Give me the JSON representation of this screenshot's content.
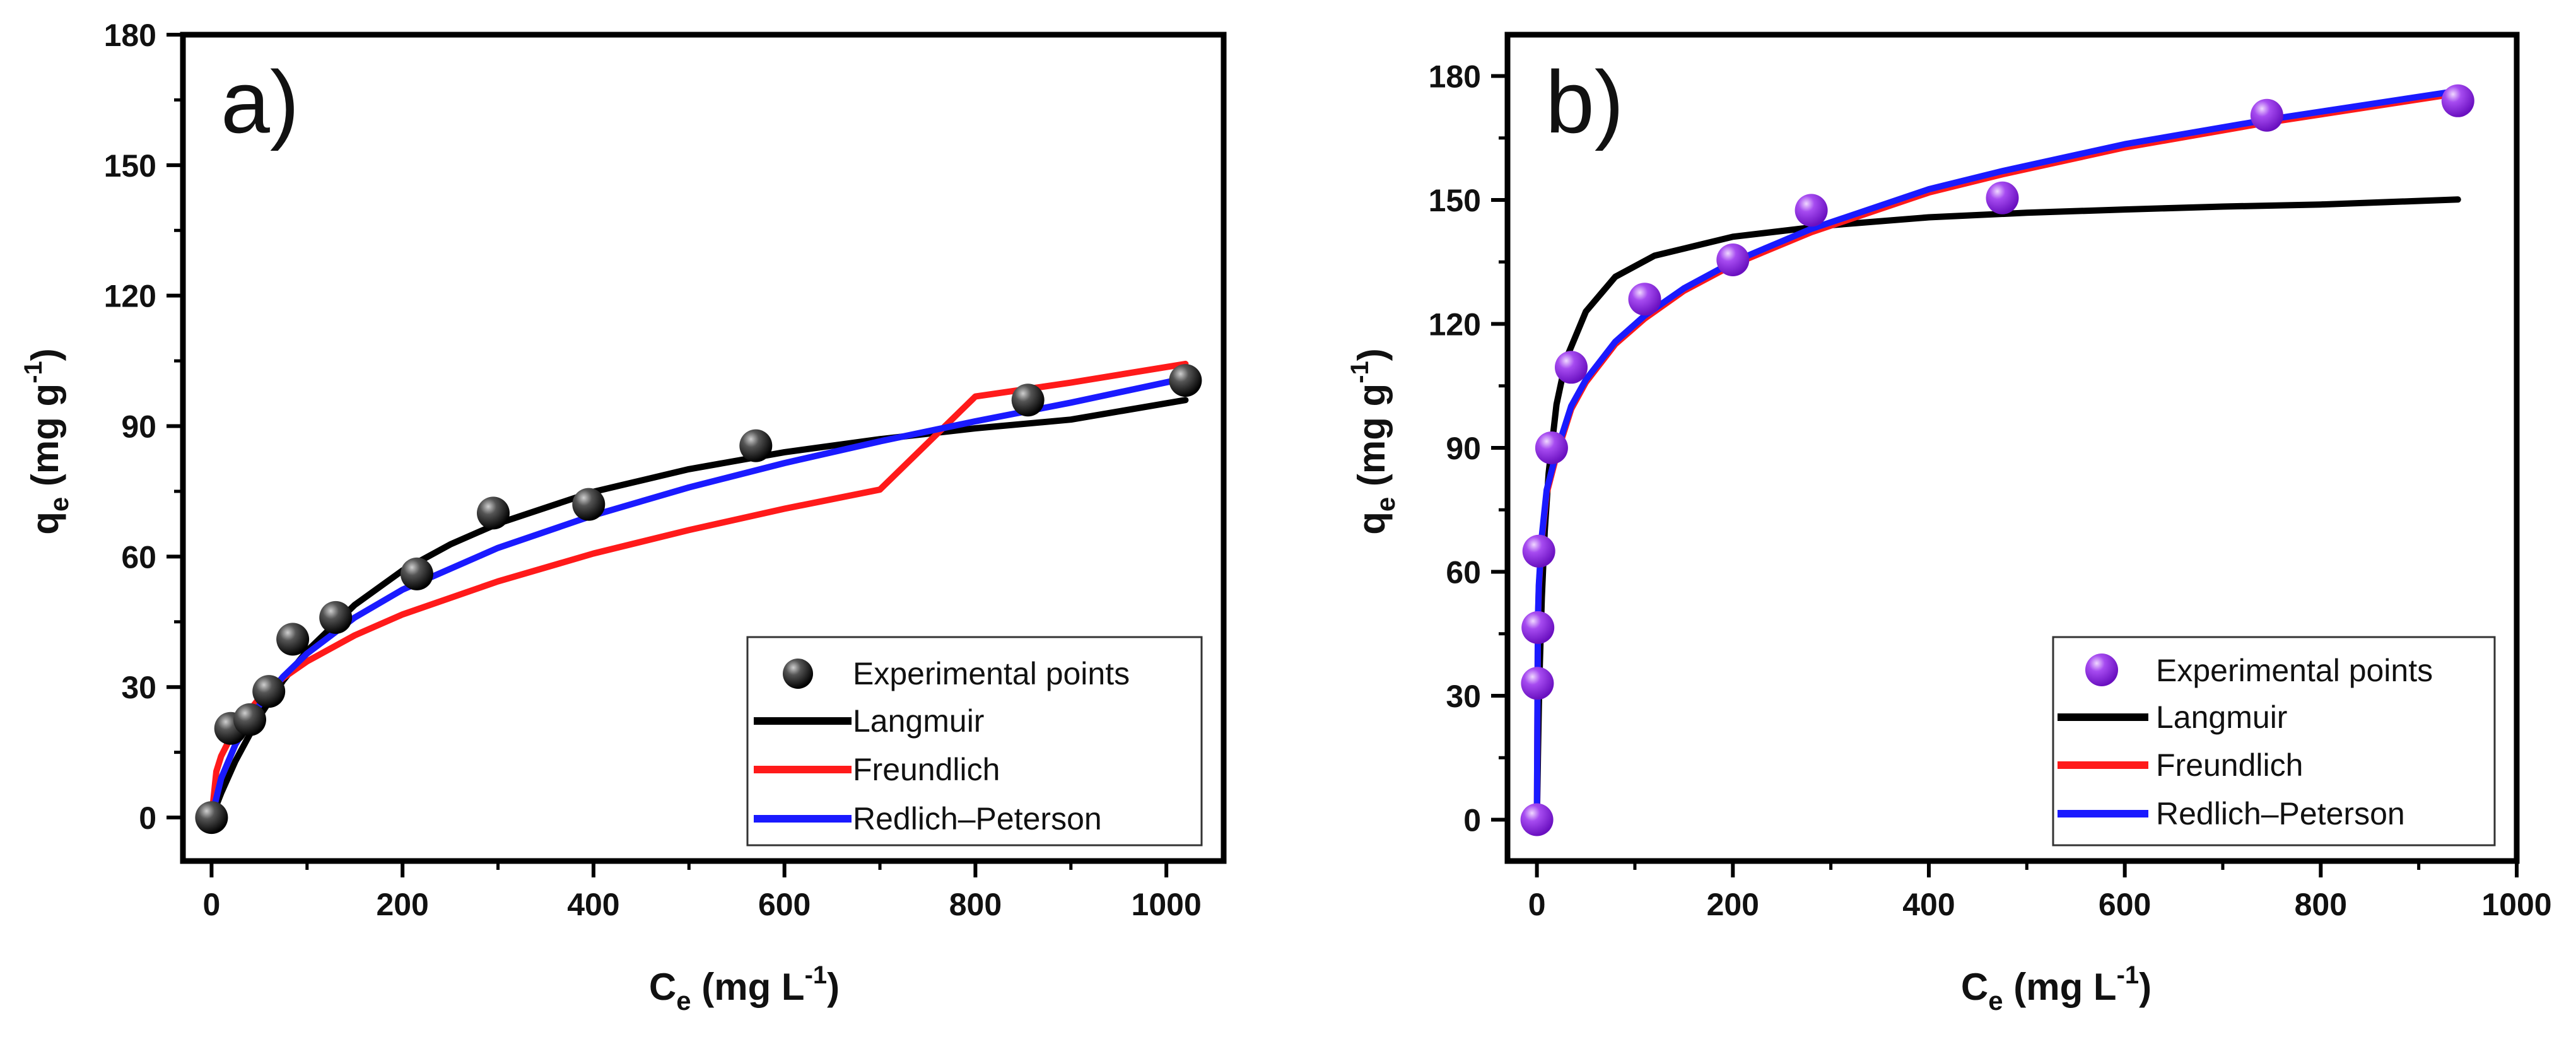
{
  "colors": {
    "langmuir": "#000000",
    "freundlich": "#ff1a1a",
    "redlich_peterson": "#1a1aff",
    "points_a": "#1a1a1a",
    "points_a_highlight": "#bdbdbd",
    "points_b": "#8a2be2",
    "points_b_highlight": "#e8c8ff",
    "axis": "#000000"
  },
  "chart_data": [
    {
      "panel": "a)",
      "type": "scatter+line",
      "xlabel_main": "C",
      "xlabel_sub": "e",
      "xlabel_unit": " (mg L",
      "xlabel_exp": "-1",
      "xlabel_close": ")",
      "ylabel_main": "q",
      "ylabel_sub": "e",
      "ylabel_unit": " (mg g",
      "ylabel_exp": "-1",
      "ylabel_close": ")",
      "xlim": [
        -30,
        1060
      ],
      "ylim": [
        -10,
        180
      ],
      "xticks": [
        0,
        200,
        400,
        600,
        800,
        1000
      ],
      "yticks": [
        0,
        30,
        60,
        90,
        120,
        150,
        180
      ],
      "legend_position": "bottom-right",
      "legend": [
        "Experimental points",
        "Langmuir",
        "Freundlich",
        "Redlich–Peterson"
      ],
      "points": {
        "x": [
          0,
          20,
          40,
          60,
          85,
          130,
          215,
          295,
          395,
          570,
          855,
          1020
        ],
        "y": [
          0,
          20.5,
          22.5,
          29,
          41,
          46,
          56,
          70,
          72,
          85.5,
          96,
          100.5
        ]
      },
      "series": [
        {
          "name": "Langmuir",
          "x": [
            0,
            10,
            25,
            50,
            75,
            100,
            150,
            200,
            250,
            300,
            400,
            500,
            600,
            700,
            800,
            900,
            1020
          ],
          "y": [
            0,
            5.6,
            13.0,
            23.2,
            31.5,
            38.3,
            48.9,
            56.8,
            62.8,
            67.6,
            74.9,
            80.1,
            84.0,
            87.0,
            89.5,
            91.5,
            96.0
          ]
        },
        {
          "name": "Freundlich",
          "x": [
            0,
            5,
            10,
            25,
            50,
            75,
            100,
            150,
            200,
            300,
            400,
            500,
            600,
            700,
            800,
            900,
            1020
          ],
          "y": [
            0,
            10.6,
            14.1,
            20.6,
            27.4,
            32.1,
            35.9,
            41.9,
            46.7,
            54.3,
            60.7,
            66.1,
            71.0,
            75.4,
            96.8,
            100.0,
            104.3
          ]
        },
        {
          "name": "Redlich–Peterson",
          "x": [
            0,
            10,
            25,
            50,
            75,
            100,
            150,
            200,
            300,
            400,
            500,
            600,
            700,
            800,
            900,
            1020
          ],
          "y": [
            0,
            9.0,
            16.8,
            25.8,
            32.4,
            37.7,
            46.0,
            52.4,
            62.0,
            69.5,
            75.9,
            81.5,
            86.5,
            91.1,
            95.4,
            101.0
          ]
        }
      ]
    },
    {
      "panel": "b)",
      "type": "scatter+line",
      "xlabel_main": "C",
      "xlabel_sub": "e",
      "xlabel_unit": " (mg L",
      "xlabel_exp": "-1",
      "xlabel_close": ")",
      "ylabel_main": "q",
      "ylabel_sub": "e",
      "ylabel_unit": " (mg g",
      "ylabel_exp": "-1",
      "ylabel_close": ")",
      "xlim": [
        -30,
        1000
      ],
      "ylim": [
        -10,
        190
      ],
      "xticks": [
        0,
        200,
        400,
        600,
        800,
        1000
      ],
      "yticks": [
        0,
        30,
        60,
        90,
        120,
        150,
        180
      ],
      "legend_position": "bottom-right",
      "legend": [
        "Experimental points",
        "Langmuir",
        "Freundlich",
        "Redlich–Peterson"
      ],
      "points": {
        "x": [
          0,
          0.5,
          1,
          2,
          15,
          35,
          110,
          200,
          280,
          475,
          745,
          940
        ],
        "y": [
          0,
          33,
          46.5,
          65,
          90,
          109.5,
          126,
          135.5,
          147.5,
          150.5,
          170.5,
          174
        ]
      },
      "series": [
        {
          "name": "Langmuir",
          "x": [
            0,
            1,
            2,
            3,
            5,
            8,
            12,
            20,
            30,
            50,
            80,
            120,
            200,
            300,
            400,
            500,
            600,
            700,
            800,
            940
          ],
          "y": [
            0,
            15.1,
            27.5,
            37.8,
            53.7,
            69.8,
            83.8,
            100.5,
            111.6,
            123.0,
            131.4,
            136.5,
            141.1,
            143.9,
            145.8,
            146.9,
            147.7,
            148.4,
            148.9,
            150.1
          ]
        },
        {
          "name": "Freundlich",
          "x": [
            0,
            1,
            2,
            5,
            10,
            20,
            35,
            50,
            80,
            110,
            150,
            200,
            280,
            400,
            475,
            600,
            745,
            940
          ],
          "y": [
            0,
            47.6,
            56.3,
            67.9,
            79.0,
            88.2,
            99.4,
            105.9,
            115.1,
            121.3,
            128.0,
            134.3,
            142.2,
            151.8,
            156.2,
            162.7,
            168.7,
            175.8
          ]
        },
        {
          "name": "Redlich–Peterson",
          "x": [
            0,
            1,
            2,
            5,
            10,
            20,
            35,
            50,
            80,
            110,
            150,
            200,
            280,
            400,
            475,
            600,
            745,
            940
          ],
          "y": [
            0,
            48.6,
            56.9,
            68.6,
            79.8,
            89.0,
            100.1,
            106.5,
            115.7,
            122.0,
            128.6,
            135.0,
            143.0,
            152.6,
            157.0,
            163.5,
            169.4,
            176.4
          ]
        }
      ]
    }
  ]
}
